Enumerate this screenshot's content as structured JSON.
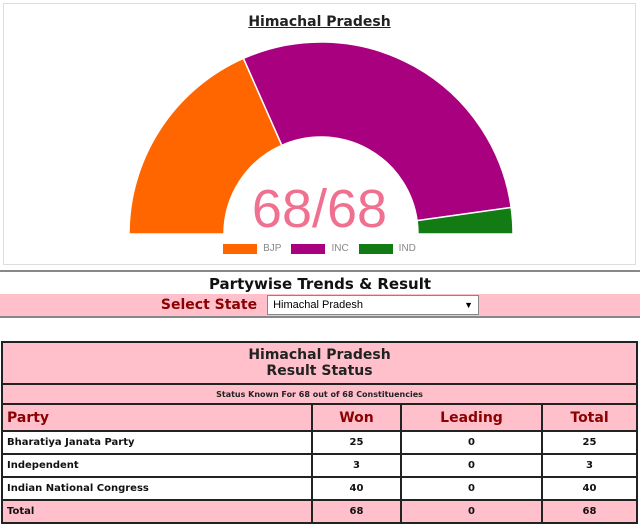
{
  "chart": {
    "title": "Himachal Pradesh",
    "center_label": "68/68"
  },
  "chart_data": {
    "type": "pie",
    "subtype": "half-donut",
    "title": "Himachal Pradesh",
    "categories": [
      "BJP",
      "INC",
      "IND"
    ],
    "values": [
      25,
      40,
      3
    ],
    "colors": [
      "#ff6600",
      "#a8007f",
      "#137b13"
    ],
    "legend": [
      "BJP",
      "INC",
      "IND"
    ],
    "legend_position": "bottom",
    "center_label": "68/68"
  },
  "header": {
    "title": "Partywise Trends & Result",
    "select_label": "Select State",
    "select_value": "Himachal Pradesh"
  },
  "result": {
    "title_line1": "Himachal Pradesh",
    "title_line2": "Result Status",
    "status": "Status Known For 68 out of 68 Constituencies",
    "columns": [
      "Party",
      "Won",
      "Leading",
      "Total"
    ],
    "rows": [
      [
        "Bharatiya Janata Party",
        "25",
        "0",
        "25"
      ],
      [
        "Independent",
        "3",
        "0",
        "3"
      ],
      [
        "Indian National Congress",
        "40",
        "0",
        "40"
      ]
    ],
    "total": [
      "Total",
      "68",
      "0",
      "68"
    ]
  }
}
